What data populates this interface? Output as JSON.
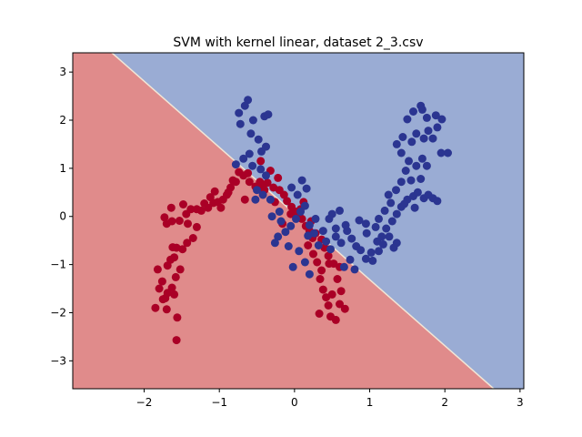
{
  "chart_data": {
    "type": "scatter",
    "title": "SVM with kernel linear, dataset 2_3.csv",
    "xlabel": "",
    "ylabel": "",
    "xlim": [
      -2.95,
      3.05
    ],
    "ylim": [
      -3.58,
      3.4
    ],
    "x_ticks": [
      -2,
      -1,
      0,
      1,
      2,
      3
    ],
    "y_ticks": [
      -3,
      -2,
      -1,
      0,
      1,
      2,
      3
    ],
    "x_tick_labels": [
      "−2",
      "−1",
      "0",
      "1",
      "2",
      "3"
    ],
    "y_tick_labels": [
      "−3",
      "−2",
      "−1",
      "0",
      "1",
      "2",
      "3"
    ],
    "grid": false,
    "legend": "none",
    "decision_boundary": {
      "description_free": true,
      "points": [
        [
          -2.43,
          3.4
        ],
        [
          2.65,
          -3.58
        ]
      ]
    },
    "regions": [
      {
        "side": "lower-left",
        "color": "#e08b8b"
      },
      {
        "side": "upper-right",
        "color": "#9aacd4"
      }
    ],
    "series": [
      {
        "color": "#aa0026",
        "points": [
          [
            -1.57,
            -2.57
          ],
          [
            -1.56,
            -2.1
          ],
          [
            -1.85,
            -1.9
          ],
          [
            -1.7,
            -1.93
          ],
          [
            -1.72,
            -1.7
          ],
          [
            -1.8,
            -1.5
          ],
          [
            -1.63,
            -1.48
          ],
          [
            -1.6,
            -1.62
          ],
          [
            -1.69,
            -1.59
          ],
          [
            -1.75,
            -1.72
          ],
          [
            -1.76,
            -1.35
          ],
          [
            -1.82,
            -1.1
          ],
          [
            -1.69,
            -1.02
          ],
          [
            -1.58,
            -1.26
          ],
          [
            -1.52,
            -1.1
          ],
          [
            -1.65,
            -0.9
          ],
          [
            -1.6,
            -0.85
          ],
          [
            -1.62,
            -0.64
          ],
          [
            -1.57,
            -0.65
          ],
          [
            -1.49,
            -0.68
          ],
          [
            -1.43,
            -0.55
          ],
          [
            -1.35,
            -0.45
          ],
          [
            -1.3,
            -0.22
          ],
          [
            -1.42,
            -0.15
          ],
          [
            -1.53,
            -0.09
          ],
          [
            -1.63,
            -0.1
          ],
          [
            -1.7,
            -0.15
          ],
          [
            -1.73,
            -0.02
          ],
          [
            -1.44,
            0.05
          ],
          [
            -1.38,
            0.15
          ],
          [
            -1.24,
            0.12
          ],
          [
            -1.15,
            0.18
          ],
          [
            -1.08,
            0.28
          ],
          [
            -1.02,
            0.3
          ],
          [
            -0.95,
            0.35
          ],
          [
            -0.9,
            0.45
          ],
          [
            -0.85,
            0.6
          ],
          [
            -0.78,
            0.72
          ],
          [
            -0.74,
            0.92
          ],
          [
            -0.68,
            0.85
          ],
          [
            -0.6,
            0.72
          ],
          [
            -0.52,
            0.62
          ],
          [
            -0.46,
            0.72
          ],
          [
            -0.42,
            0.65
          ],
          [
            -0.36,
            0.7
          ],
          [
            -0.28,
            0.6
          ],
          [
            -0.2,
            0.55
          ],
          [
            -0.14,
            0.45
          ],
          [
            -0.1,
            0.32
          ],
          [
            -0.04,
            0.2
          ],
          [
            0.02,
            0.1
          ],
          [
            0.05,
            0.02
          ],
          [
            0.1,
            -0.05
          ],
          [
            0.15,
            -0.2
          ],
          [
            0.2,
            -0.3
          ],
          [
            0.24,
            -0.45
          ],
          [
            0.18,
            -0.6
          ],
          [
            0.25,
            -0.78
          ],
          [
            0.3,
            -0.95
          ],
          [
            0.36,
            -1.12
          ],
          [
            0.34,
            -1.3
          ],
          [
            0.38,
            -1.52
          ],
          [
            0.42,
            -1.68
          ],
          [
            0.45,
            -1.85
          ],
          [
            0.33,
            -2.02
          ],
          [
            0.48,
            -2.08
          ],
          [
            0.55,
            -2.15
          ],
          [
            0.6,
            -1.82
          ],
          [
            0.67,
            -1.92
          ],
          [
            0.62,
            -1.55
          ],
          [
            0.57,
            -1.3
          ],
          [
            0.6,
            -1.05
          ],
          [
            0.52,
            -0.98
          ],
          [
            0.45,
            -0.82
          ],
          [
            0.4,
            -0.65
          ],
          [
            0.36,
            -0.48
          ],
          [
            0.28,
            -0.35
          ],
          [
            0.22,
            -0.1
          ],
          [
            -0.22,
            0.8
          ],
          [
            -0.32,
            0.95
          ],
          [
            -0.45,
            1.15
          ],
          [
            -0.62,
            0.9
          ],
          [
            -0.82,
            0.75
          ],
          [
            -1.12,
            0.4
          ],
          [
            -1.2,
            0.27
          ],
          [
            -1.3,
            0.15
          ],
          [
            -1.48,
            0.25
          ],
          [
            -1.64,
            0.18
          ],
          [
            -0.66,
            0.35
          ],
          [
            -0.88,
            0.5
          ],
          [
            -0.05,
            0.05
          ],
          [
            -0.16,
            -0.15
          ],
          [
            0.08,
            0.15
          ],
          [
            0.12,
            0.3
          ],
          [
            -0.26,
            0.3
          ],
          [
            -0.4,
            0.55
          ],
          [
            -0.98,
            0.18
          ],
          [
            -1.06,
            0.52
          ],
          [
            0.46,
            -0.98
          ],
          [
            0.5,
            -1.62
          ]
        ]
      },
      {
        "color": "#2b3591",
        "points": [
          [
            -0.62,
            2.42
          ],
          [
            -0.66,
            2.3
          ],
          [
            -0.72,
            1.92
          ],
          [
            -0.74,
            2.15
          ],
          [
            -0.55,
            2.0
          ],
          [
            -0.4,
            2.08
          ],
          [
            -0.35,
            2.12
          ],
          [
            -0.58,
            1.72
          ],
          [
            -0.48,
            1.6
          ],
          [
            -0.38,
            1.45
          ],
          [
            -0.44,
            1.35
          ],
          [
            -0.6,
            1.3
          ],
          [
            -0.68,
            1.2
          ],
          [
            -0.78,
            1.08
          ],
          [
            -0.56,
            1.05
          ],
          [
            -0.45,
            0.98
          ],
          [
            -0.38,
            0.85
          ],
          [
            -0.5,
            0.55
          ],
          [
            -0.42,
            0.45
          ],
          [
            -0.32,
            0.35
          ],
          [
            -0.3,
            0.0
          ],
          [
            -0.18,
            -0.1
          ],
          [
            -0.12,
            -0.32
          ],
          [
            -0.05,
            -0.2
          ],
          [
            0.02,
            -0.05
          ],
          [
            0.08,
            0.1
          ],
          [
            0.14,
            0.22
          ],
          [
            0.04,
            0.45
          ],
          [
            -0.04,
            0.6
          ],
          [
            0.1,
            0.75
          ],
          [
            0.16,
            0.58
          ],
          [
            0.2,
            -0.18
          ],
          [
            0.26,
            -0.35
          ],
          [
            0.32,
            -0.6
          ],
          [
            0.42,
            -0.52
          ],
          [
            0.48,
            -0.68
          ],
          [
            0.55,
            -0.42
          ],
          [
            0.62,
            -0.55
          ],
          [
            0.7,
            -0.3
          ],
          [
            0.76,
            -0.46
          ],
          [
            0.82,
            -0.62
          ],
          [
            0.88,
            -0.7
          ],
          [
            0.95,
            -0.88
          ],
          [
            1.02,
            -0.75
          ],
          [
            1.1,
            -0.52
          ],
          [
            1.16,
            -0.42
          ],
          [
            1.22,
            -0.25
          ],
          [
            1.3,
            -0.1
          ],
          [
            1.36,
            0.05
          ],
          [
            1.42,
            0.2
          ],
          [
            1.5,
            0.35
          ],
          [
            1.58,
            0.42
          ],
          [
            1.64,
            0.5
          ],
          [
            1.72,
            0.38
          ],
          [
            1.78,
            0.45
          ],
          [
            1.84,
            0.38
          ],
          [
            1.9,
            0.32
          ],
          [
            1.36,
            -0.55
          ],
          [
            1.26,
            -0.42
          ],
          [
            1.18,
            -0.58
          ],
          [
            1.32,
            -0.65
          ],
          [
            1.12,
            -0.72
          ],
          [
            1.04,
            -0.92
          ],
          [
            1.35,
            0.55
          ],
          [
            1.42,
            0.72
          ],
          [
            1.48,
            0.95
          ],
          [
            1.52,
            1.15
          ],
          [
            1.42,
            1.32
          ],
          [
            1.36,
            1.5
          ],
          [
            1.44,
            1.65
          ],
          [
            1.56,
            1.55
          ],
          [
            1.62,
            1.72
          ],
          [
            1.72,
            1.62
          ],
          [
            1.78,
            1.78
          ],
          [
            1.84,
            1.62
          ],
          [
            1.9,
            1.85
          ],
          [
            1.96,
            2.02
          ],
          [
            1.88,
            2.1
          ],
          [
            1.76,
            2.05
          ],
          [
            1.68,
            2.3
          ],
          [
            1.58,
            2.18
          ],
          [
            1.7,
            2.22
          ],
          [
            1.5,
            2.02
          ],
          [
            1.7,
            1.2
          ],
          [
            1.62,
            1.05
          ],
          [
            1.55,
            0.75
          ],
          [
            1.68,
            0.78
          ],
          [
            1.76,
            1.05
          ],
          [
            1.95,
            1.32
          ],
          [
            2.04,
            1.32
          ],
          [
            0.46,
            -0.05
          ],
          [
            0.55,
            -0.25
          ],
          [
            0.68,
            -0.18
          ],
          [
            0.86,
            -0.08
          ],
          [
            0.95,
            -0.15
          ],
          [
            1.12,
            -0.05
          ],
          [
            1.2,
            0.12
          ],
          [
            1.28,
            0.28
          ],
          [
            -0.08,
            -0.62
          ],
          [
            0.14,
            -0.95
          ],
          [
            0.06,
            -0.72
          ],
          [
            -0.22,
            -0.42
          ],
          [
            -0.26,
            -0.55
          ],
          [
            -0.52,
            0.35
          ],
          [
            -0.2,
            0.1
          ],
          [
            0.18,
            -0.4
          ],
          [
            0.38,
            -0.3
          ],
          [
            0.28,
            -0.05
          ],
          [
            0.74,
            -0.9
          ],
          [
            0.66,
            -1.05
          ],
          [
            0.96,
            -0.35
          ],
          [
            1.08,
            -0.22
          ],
          [
            1.6,
            0.18
          ],
          [
            1.46,
            0.26
          ],
          [
            -0.02,
            -1.05
          ],
          [
            0.5,
            0.05
          ],
          [
            0.6,
            0.12
          ],
          [
            0.2,
            -1.2
          ],
          [
            0.8,
            -1.1
          ],
          [
            1.25,
            0.45
          ]
        ]
      }
    ]
  }
}
